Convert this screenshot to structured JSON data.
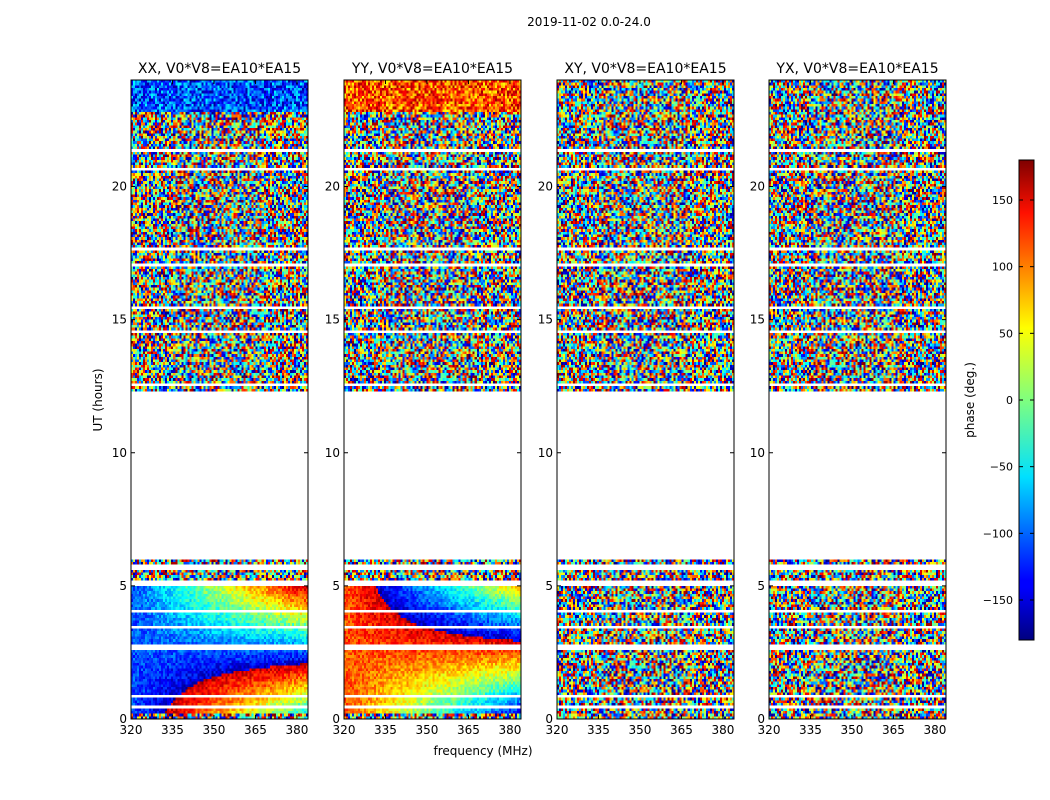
{
  "chart_data": {
    "type": "heatmap",
    "suptitle": "2019-11-02 0.0-24.0",
    "xlabel": "frequency (MHz)",
    "ylabel": "UT (hours)",
    "xlim": [
      320,
      384
    ],
    "ylim": [
      0,
      24
    ],
    "xticks": [
      320,
      335,
      350,
      365,
      380
    ],
    "yticks": [
      0,
      5,
      10,
      15,
      20
    ],
    "panels": [
      {
        "title": "XX, V0*V8=EA10*EA15",
        "polarization": "XX",
        "baseline": "V0*V8=EA10*EA15"
      },
      {
        "title": "YY, V0*V8=EA10*EA15",
        "polarization": "YY",
        "baseline": "V0*V8=EA10*EA15"
      },
      {
        "title": "XY, V0*V8=EA10*EA15",
        "polarization": "XY",
        "baseline": "V0*V8=EA10*EA15"
      },
      {
        "title": "YX, V0*V8=EA10*EA15",
        "polarization": "YX",
        "baseline": "V0*V8=EA10*EA15"
      }
    ],
    "data_gap_hours": [
      6.0,
      12.3
    ],
    "colorbar": {
      "label": "phase (deg.)",
      "range": [
        -180,
        180
      ],
      "ticks": [
        -150,
        -100,
        -50,
        0,
        50,
        100,
        150
      ],
      "colormap": "jet"
    }
  }
}
